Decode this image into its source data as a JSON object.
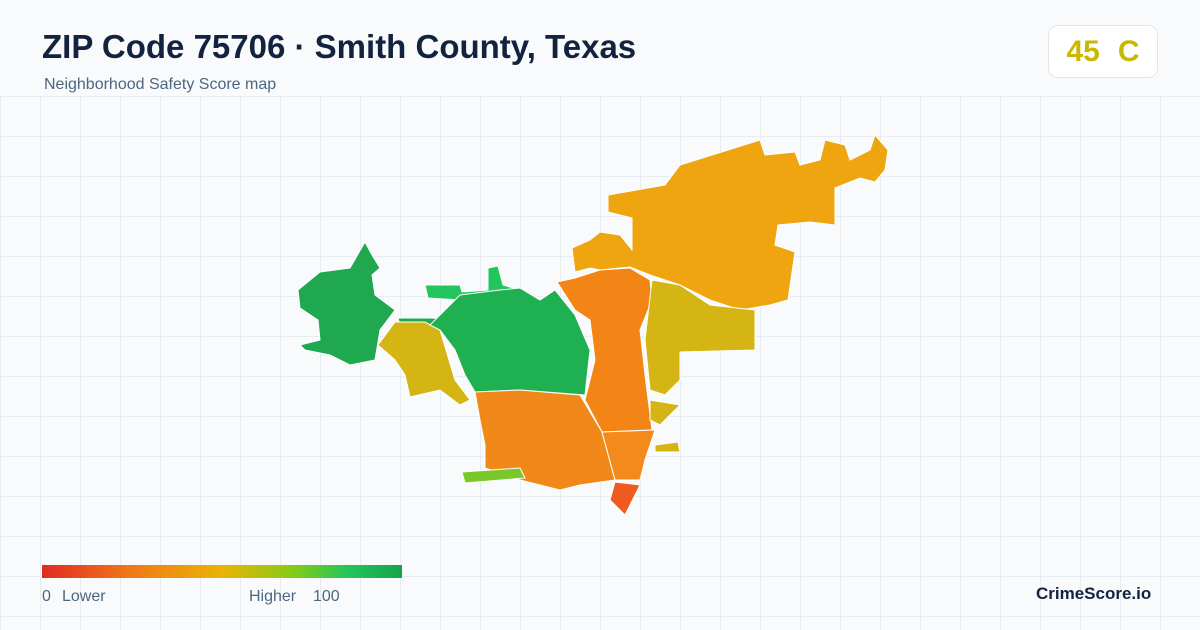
{
  "header": {
    "title": "ZIP Code 75706 · Smith County, Texas",
    "subtitle": "Neighborhood Safety Score map"
  },
  "score": {
    "value": 45,
    "grade": "C"
  },
  "legend": {
    "min": 0,
    "min_label": "Lower",
    "max_label": "Higher",
    "max": 100
  },
  "brand": "CrimeScore.io"
}
